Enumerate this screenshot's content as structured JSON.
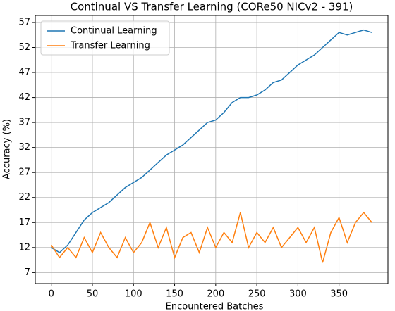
{
  "chart_data": {
    "type": "line",
    "title": "Continual VS Transfer Learning (CORe50 NICv2 - 391)",
    "x_label": "Encountered Batches",
    "y_label": "Accuracy (%)",
    "x": [
      0,
      10,
      20,
      30,
      40,
      50,
      60,
      70,
      80,
      90,
      100,
      110,
      120,
      130,
      140,
      150,
      160,
      170,
      180,
      190,
      200,
      210,
      220,
      230,
      240,
      250,
      260,
      270,
      280,
      290,
      300,
      310,
      320,
      330,
      340,
      350,
      360,
      370,
      380,
      390
    ],
    "series": [
      {
        "name": "Continual Learning",
        "color": "#1f77b4",
        "values": [
          12,
          11,
          12.5,
          15,
          17.5,
          19,
          20,
          21,
          22.5,
          24,
          25,
          26,
          27.5,
          29,
          30.5,
          31.5,
          32.5,
          34,
          35.5,
          37,
          37.5,
          39,
          41,
          42,
          42,
          42.5,
          43.5,
          45,
          45.5,
          47,
          48.5,
          49.5,
          50.5,
          52,
          53.5,
          55,
          54.5,
          55,
          55.5,
          55
        ]
      },
      {
        "name": "Transfer Learning",
        "color": "#ff7f0e",
        "values": [
          12.5,
          10,
          12,
          10,
          14,
          11,
          15,
          12,
          10,
          14,
          11,
          13,
          17,
          12,
          16,
          10,
          14,
          15,
          11,
          16,
          12,
          15,
          13,
          19,
          12,
          15,
          13,
          16,
          12,
          14,
          16,
          13,
          16,
          9,
          15,
          18,
          13,
          17,
          19,
          17
        ]
      }
    ],
    "xlim": [
      -19.5,
      409.5
    ],
    "ylim": [
      4.8,
      58.4
    ],
    "xticks": [
      0,
      50,
      100,
      150,
      200,
      250,
      300,
      350
    ],
    "yticks": [
      7,
      12,
      17,
      22,
      27,
      32,
      37,
      42,
      47,
      52,
      57
    ],
    "grid": true,
    "legend": "upper left"
  }
}
